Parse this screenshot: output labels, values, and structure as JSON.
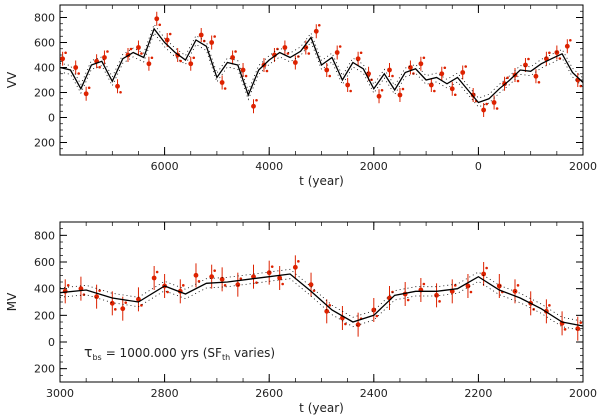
{
  "chart_data": [
    {
      "type": "line",
      "panel": "top",
      "ylabel": "VV",
      "xlabel": "t (year)",
      "xlim": [
        8000,
        -2000
      ],
      "ylim": [
        -300,
        900
      ],
      "xticks": [
        {
          "value": 6000,
          "label": "6000"
        },
        {
          "value": 4000,
          "label": "4000"
        },
        {
          "value": 2000,
          "label": "2000"
        },
        {
          "value": 0,
          "label": "0"
        },
        {
          "value": -2000,
          "label": "2000"
        }
      ],
      "yticks": [
        {
          "value": -200,
          "label": "200"
        },
        {
          "value": 0,
          "label": "0"
        },
        {
          "value": 200,
          "label": "200"
        },
        {
          "value": 400,
          "label": "400"
        },
        {
          "value": 600,
          "label": "600"
        },
        {
          "value": 800,
          "label": "800"
        }
      ],
      "series": [
        {
          "name": "model",
          "color": "#000000",
          "x": [
            8000,
            7800,
            7600,
            7400,
            7200,
            7000,
            6800,
            6600,
            6400,
            6200,
            6000,
            5800,
            5600,
            5400,
            5200,
            5000,
            4800,
            4600,
            4400,
            4200,
            4000,
            3800,
            3600,
            3400,
            3200,
            3000,
            2800,
            2600,
            2400,
            2200,
            2000,
            1800,
            1600,
            1400,
            1200,
            1000,
            800,
            600,
            400,
            200,
            0,
            -200,
            -400,
            -600,
            -800,
            -1000,
            -1200,
            -1400,
            -1600,
            -1800,
            -2000
          ],
          "y": [
            400,
            380,
            230,
            420,
            450,
            290,
            470,
            520,
            480,
            710,
            600,
            520,
            460,
            620,
            570,
            320,
            440,
            420,
            180,
            380,
            460,
            520,
            480,
            530,
            640,
            420,
            480,
            300,
            440,
            390,
            230,
            350,
            220,
            360,
            390,
            300,
            320,
            270,
            320,
            220,
            120,
            150,
            230,
            300,
            380,
            370,
            430,
            470,
            510,
            360,
            280
          ]
        },
        {
          "name": "data",
          "color": "#dd2200",
          "x": [
            7950,
            7700,
            7500,
            7300,
            7150,
            6900,
            6700,
            6500,
            6300,
            6150,
            5950,
            5750,
            5500,
            5300,
            5100,
            4900,
            4700,
            4500,
            4300,
            4100,
            3900,
            3700,
            3500,
            3300,
            3100,
            2900,
            2700,
            2500,
            2300,
            2100,
            1900,
            1700,
            1500,
            1300,
            1100,
            900,
            700,
            500,
            300,
            100,
            -100,
            -300,
            -500,
            -700,
            -900,
            -1100,
            -1300,
            -1500,
            -1700,
            -1900
          ],
          "y": [
            470,
            400,
            190,
            450,
            480,
            250,
            500,
            560,
            430,
            790,
            620,
            500,
            430,
            660,
            600,
            280,
            480,
            380,
            90,
            420,
            500,
            560,
            440,
            560,
            690,
            380,
            520,
            260,
            470,
            350,
            170,
            380,
            180,
            400,
            430,
            260,
            350,
            230,
            360,
            180,
            60,
            120,
            270,
            340,
            420,
            330,
            470,
            520,
            570,
            300
          ]
        }
      ]
    },
    {
      "type": "line",
      "panel": "bottom",
      "ylabel": "MV",
      "xlabel": "t (year)",
      "xlim": [
        3000,
        2000
      ],
      "ylim": [
        -300,
        900
      ],
      "xticks": [
        {
          "value": 3000,
          "label": "3000"
        },
        {
          "value": 2800,
          "label": "2800"
        },
        {
          "value": 2600,
          "label": "2600"
        },
        {
          "value": 2400,
          "label": "2400"
        },
        {
          "value": 2200,
          "label": "2200"
        },
        {
          "value": 2000,
          "label": "2000"
        }
      ],
      "yticks": [
        {
          "value": -200,
          "label": "200"
        },
        {
          "value": 0,
          "label": "0"
        },
        {
          "value": 200,
          "label": "200"
        },
        {
          "value": 400,
          "label": "400"
        },
        {
          "value": 600,
          "label": "600"
        },
        {
          "value": 800,
          "label": "800"
        }
      ],
      "annotation": {
        "symbol": "τ",
        "subscript": "bs",
        "text": "= 1000.000 yrs (SF",
        "subscript2": "th",
        "tail": " varies)"
      },
      "series": [
        {
          "name": "model",
          "color": "#000000",
          "x": [
            3000,
            2950,
            2900,
            2850,
            2800,
            2760,
            2720,
            2680,
            2640,
            2600,
            2560,
            2520,
            2480,
            2440,
            2400,
            2360,
            2320,
            2280,
            2240,
            2200,
            2160,
            2120,
            2080,
            2040,
            2000
          ],
          "y": [
            370,
            390,
            330,
            300,
            420,
            360,
            440,
            450,
            470,
            490,
            510,
            380,
            240,
            150,
            200,
            350,
            380,
            380,
            400,
            490,
            390,
            330,
            250,
            150,
            120
          ]
        },
        {
          "name": "data",
          "color": "#dd2200",
          "x": [
            2990,
            2960,
            2930,
            2900,
            2880,
            2850,
            2820,
            2800,
            2770,
            2740,
            2710,
            2690,
            2660,
            2630,
            2600,
            2580,
            2550,
            2520,
            2490,
            2460,
            2430,
            2400,
            2370,
            2340,
            2310,
            2280,
            2250,
            2220,
            2190,
            2160,
            2130,
            2100,
            2070,
            2040,
            2010
          ],
          "y": [
            380,
            400,
            340,
            290,
            250,
            320,
            480,
            420,
            380,
            500,
            490,
            470,
            430,
            490,
            520,
            480,
            560,
            430,
            230,
            180,
            130,
            240,
            330,
            360,
            390,
            350,
            380,
            420,
            510,
            420,
            380,
            290,
            230,
            140,
            100
          ]
        }
      ]
    }
  ]
}
